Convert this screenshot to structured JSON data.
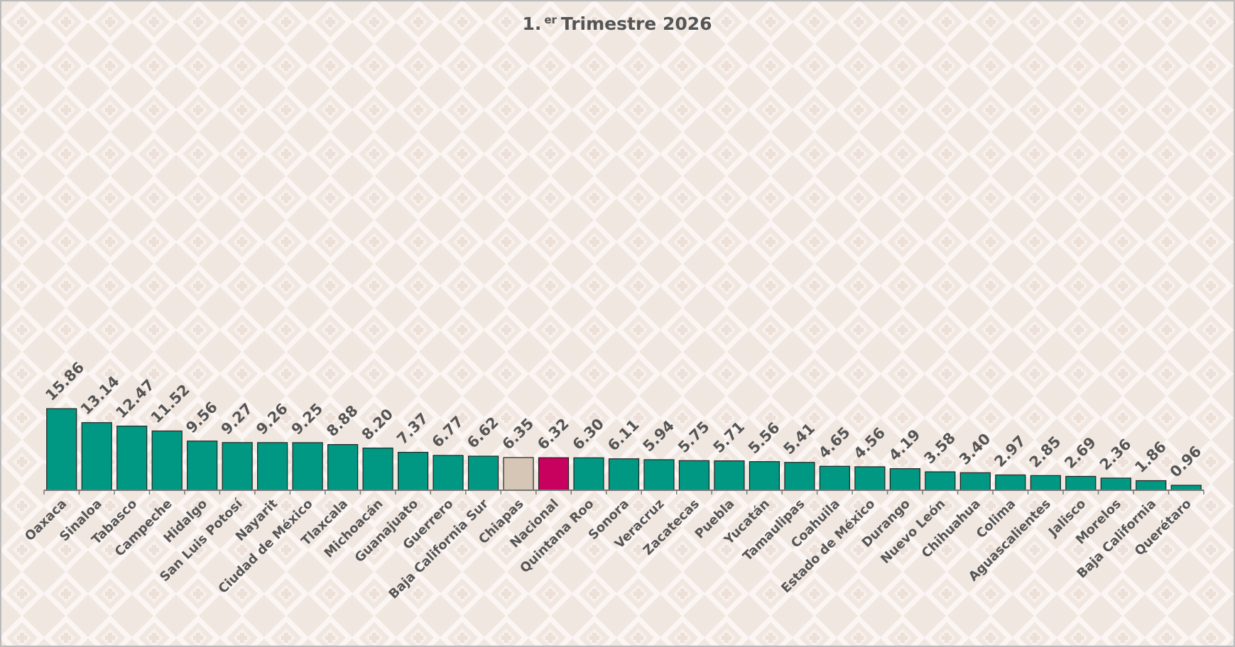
{
  "chart_data": {
    "type": "bar",
    "title": "1.",
    "title_superscript": "er",
    "title_rest": "Trimestre 2026",
    "categories": [
      "Oaxaca",
      "Sinaloa",
      "Tabasco",
      "Campeche",
      "Hidalgo",
      "San Luis Potosí",
      "Nayarit",
      "Ciudad de México",
      "Tlaxcala",
      "Michoacán",
      "Guanajuato",
      "Guerrero",
      "Baja California Sur",
      "Chiapas",
      "Nacional",
      "Quintana Roo",
      "Sonora",
      "Veracruz",
      "Zacatecas",
      "Puebla",
      "Yucatán",
      "Tamaulipas",
      "Coahuila",
      "Estado de México",
      "Durango",
      "Nuevo León",
      "Chihuahua",
      "Colima",
      "Aguascalientes",
      "Jalisco",
      "Morelos",
      "Baja California",
      "Querétaro"
    ],
    "values": [
      15.86,
      13.14,
      12.47,
      11.52,
      9.56,
      9.27,
      9.26,
      9.25,
      8.88,
      8.2,
      7.37,
      6.77,
      6.62,
      6.35,
      6.32,
      6.3,
      6.11,
      5.94,
      5.75,
      5.71,
      5.56,
      5.41,
      4.65,
      4.56,
      4.19,
      3.58,
      3.4,
      2.97,
      2.85,
      2.69,
      2.36,
      1.86,
      0.96
    ],
    "value_labels": [
      "15.86",
      "13.14",
      "12.47",
      "11.52",
      "9.56",
      "9.27",
      "9.26",
      "9.25",
      "8.88",
      "8.20",
      "7.37",
      "6.77",
      "6.62",
      "6.35",
      "6.32",
      "6.30",
      "6.11",
      "5.94",
      "5.75",
      "5.71",
      "5.56",
      "5.41",
      "4.65",
      "4.56",
      "4.19",
      "3.58",
      "3.40",
      "2.97",
      "2.85",
      "2.69",
      "2.36",
      "1.86",
      "0.96"
    ],
    "colors": [
      "#009882",
      "#009882",
      "#009882",
      "#009882",
      "#009882",
      "#009882",
      "#009882",
      "#009882",
      "#009882",
      "#009882",
      "#009882",
      "#009882",
      "#009882",
      "#d6c6b6",
      "#c8005e",
      "#009882",
      "#009882",
      "#009882",
      "#009882",
      "#009882",
      "#009882",
      "#009882",
      "#009882",
      "#009882",
      "#009882",
      "#009882",
      "#009882",
      "#009882",
      "#009882",
      "#009882",
      "#009882",
      "#009882",
      "#009882"
    ],
    "ylim": [
      0,
      60
    ]
  }
}
